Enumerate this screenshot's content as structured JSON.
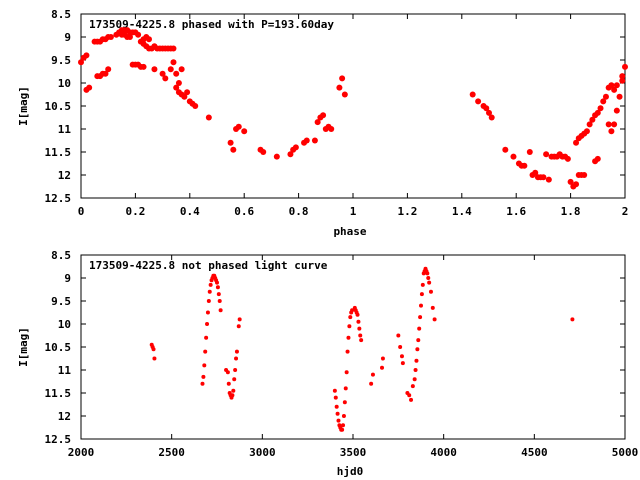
{
  "chart_data": [
    {
      "type": "scatter",
      "title": "173509-4225.8 phased with P=193.60day",
      "xlabel": "phase",
      "ylabel": "I[mag]",
      "xlim": [
        0,
        2
      ],
      "ylim": [
        12.5,
        8.5
      ],
      "y_inverted": true,
      "grid": false,
      "color": "#ff0000",
      "xticks": [
        "0",
        "0.2",
        "0.4",
        "0.6",
        "0.8",
        "1",
        "1.2",
        "1.4",
        "1.6",
        "1.8",
        "2"
      ],
      "yticks": [
        "8.5",
        "9",
        "9.5",
        "10",
        "10.5",
        "11",
        "11.5",
        "12",
        "12.5"
      ],
      "points": [
        [
          0.0,
          9.55
        ],
        [
          0.01,
          9.45
        ],
        [
          0.02,
          9.4
        ],
        [
          0.02,
          10.15
        ],
        [
          0.03,
          10.1
        ],
        [
          0.05,
          9.1
        ],
        [
          0.06,
          9.1
        ],
        [
          0.07,
          9.1
        ],
        [
          0.08,
          9.05
        ],
        [
          0.09,
          9.05
        ],
        [
          0.1,
          9.0
        ],
        [
          0.11,
          9.0
        ],
        [
          0.06,
          9.85
        ],
        [
          0.07,
          9.85
        ],
        [
          0.08,
          9.8
        ],
        [
          0.09,
          9.8
        ],
        [
          0.1,
          9.7
        ],
        [
          0.13,
          8.95
        ],
        [
          0.14,
          8.9
        ],
        [
          0.15,
          8.85
        ],
        [
          0.16,
          8.85
        ],
        [
          0.17,
          8.85
        ],
        [
          0.18,
          8.9
        ],
        [
          0.19,
          8.9
        ],
        [
          0.2,
          8.9
        ],
        [
          0.21,
          8.95
        ],
        [
          0.15,
          8.95
        ],
        [
          0.16,
          8.95
        ],
        [
          0.17,
          9.0
        ],
        [
          0.18,
          9.0
        ],
        [
          0.19,
          9.6
        ],
        [
          0.2,
          9.6
        ],
        [
          0.21,
          9.6
        ],
        [
          0.22,
          9.65
        ],
        [
          0.23,
          9.65
        ],
        [
          0.22,
          9.1
        ],
        [
          0.23,
          9.15
        ],
        [
          0.24,
          9.2
        ],
        [
          0.25,
          9.25
        ],
        [
          0.26,
          9.25
        ],
        [
          0.27,
          9.2
        ],
        [
          0.23,
          9.05
        ],
        [
          0.24,
          9.0
        ],
        [
          0.25,
          9.05
        ],
        [
          0.28,
          9.25
        ],
        [
          0.29,
          9.25
        ],
        [
          0.3,
          9.25
        ],
        [
          0.31,
          9.25
        ],
        [
          0.32,
          9.25
        ],
        [
          0.33,
          9.25
        ],
        [
          0.34,
          9.25
        ],
        [
          0.27,
          9.7
        ],
        [
          0.3,
          9.8
        ],
        [
          0.31,
          9.9
        ],
        [
          0.33,
          9.7
        ],
        [
          0.34,
          9.55
        ],
        [
          0.35,
          9.8
        ],
        [
          0.36,
          10.0
        ],
        [
          0.37,
          9.7
        ],
        [
          0.35,
          10.1
        ],
        [
          0.36,
          10.2
        ],
        [
          0.37,
          10.25
        ],
        [
          0.38,
          10.3
        ],
        [
          0.39,
          10.2
        ],
        [
          0.4,
          10.4
        ],
        [
          0.41,
          10.45
        ],
        [
          0.42,
          10.5
        ],
        [
          0.47,
          10.75
        ],
        [
          0.55,
          11.3
        ],
        [
          0.56,
          11.45
        ],
        [
          0.57,
          11.0
        ],
        [
          0.58,
          10.95
        ],
        [
          0.6,
          11.05
        ],
        [
          0.66,
          11.45
        ],
        [
          0.67,
          11.5
        ],
        [
          0.72,
          11.6
        ],
        [
          0.77,
          11.55
        ],
        [
          0.78,
          11.45
        ],
        [
          0.79,
          11.4
        ],
        [
          0.82,
          11.3
        ],
        [
          0.83,
          11.25
        ],
        [
          0.86,
          11.25
        ],
        [
          0.87,
          10.85
        ],
        [
          0.88,
          10.75
        ],
        [
          0.89,
          10.7
        ],
        [
          0.9,
          11.0
        ],
        [
          0.91,
          10.95
        ],
        [
          0.92,
          11.0
        ],
        [
          0.95,
          10.1
        ],
        [
          0.96,
          9.9
        ],
        [
          0.97,
          10.25
        ],
        [
          1.44,
          10.25
        ],
        [
          1.46,
          10.4
        ],
        [
          1.48,
          10.5
        ],
        [
          1.49,
          10.55
        ],
        [
          1.5,
          10.65
        ],
        [
          1.51,
          10.75
        ],
        [
          1.56,
          11.45
        ],
        [
          1.59,
          11.6
        ],
        [
          1.61,
          11.75
        ],
        [
          1.62,
          11.8
        ],
        [
          1.63,
          11.8
        ],
        [
          1.65,
          11.5
        ],
        [
          1.66,
          12.0
        ],
        [
          1.67,
          11.95
        ],
        [
          1.68,
          12.05
        ],
        [
          1.69,
          12.05
        ],
        [
          1.7,
          12.05
        ],
        [
          1.71,
          11.55
        ],
        [
          1.72,
          12.1
        ],
        [
          1.73,
          11.6
        ],
        [
          1.74,
          11.6
        ],
        [
          1.75,
          11.6
        ],
        [
          1.76,
          11.55
        ],
        [
          1.77,
          11.6
        ],
        [
          1.78,
          11.6
        ],
        [
          1.79,
          11.65
        ],
        [
          1.8,
          12.15
        ],
        [
          1.81,
          12.25
        ],
        [
          1.82,
          12.2
        ],
        [
          1.83,
          12.0
        ],
        [
          1.84,
          12.0
        ],
        [
          1.85,
          12.0
        ],
        [
          1.82,
          11.3
        ],
        [
          1.83,
          11.2
        ],
        [
          1.84,
          11.15
        ],
        [
          1.85,
          11.1
        ],
        [
          1.86,
          11.05
        ],
        [
          1.87,
          10.9
        ],
        [
          1.88,
          10.8
        ],
        [
          1.89,
          11.7
        ],
        [
          1.9,
          11.65
        ],
        [
          1.89,
          10.7
        ],
        [
          1.9,
          10.65
        ],
        [
          1.91,
          10.55
        ],
        [
          1.92,
          10.4
        ],
        [
          1.93,
          10.3
        ],
        [
          1.94,
          10.1
        ],
        [
          1.95,
          10.05
        ],
        [
          1.96,
          10.15
        ],
        [
          1.97,
          10.05
        ],
        [
          1.94,
          10.9
        ],
        [
          1.95,
          11.05
        ],
        [
          1.96,
          10.9
        ],
        [
          1.97,
          10.6
        ],
        [
          1.98,
          10.3
        ],
        [
          1.99,
          9.95
        ],
        [
          1.99,
          9.85
        ],
        [
          2.0,
          9.65
        ]
      ]
    },
    {
      "type": "scatter",
      "title": "173509-4225.8 not phased light curve",
      "xlabel": "hjd0",
      "ylabel": "I[mag]",
      "xlim": [
        2000,
        5000
      ],
      "ylim": [
        12.5,
        8.5
      ],
      "y_inverted": true,
      "grid": false,
      "color": "#ff0000",
      "xticks": [
        "2000",
        "2500",
        "3000",
        "3500",
        "4000",
        "4500",
        "5000"
      ],
      "yticks": [
        "8.5",
        "9",
        "9.5",
        "10",
        "10.5",
        "11",
        "11.5",
        "12",
        "12.5"
      ],
      "points": [
        [
          2390,
          10.45
        ],
        [
          2395,
          10.5
        ],
        [
          2400,
          10.55
        ],
        [
          2405,
          10.75
        ],
        [
          2670,
          11.3
        ],
        [
          2675,
          11.15
        ],
        [
          2680,
          10.9
        ],
        [
          2685,
          10.6
        ],
        [
          2690,
          10.3
        ],
        [
          2695,
          10.0
        ],
        [
          2700,
          9.75
        ],
        [
          2705,
          9.5
        ],
        [
          2710,
          9.3
        ],
        [
          2715,
          9.15
        ],
        [
          2720,
          9.05
        ],
        [
          2725,
          9.0
        ],
        [
          2730,
          8.95
        ],
        [
          2735,
          8.95
        ],
        [
          2740,
          9.0
        ],
        [
          2745,
          9.05
        ],
        [
          2750,
          9.1
        ],
        [
          2755,
          9.2
        ],
        [
          2760,
          9.35
        ],
        [
          2765,
          9.5
        ],
        [
          2770,
          9.7
        ],
        [
          2800,
          11.0
        ],
        [
          2810,
          11.05
        ],
        [
          2815,
          11.3
        ],
        [
          2820,
          11.5
        ],
        [
          2825,
          11.55
        ],
        [
          2830,
          11.6
        ],
        [
          2835,
          11.55
        ],
        [
          2840,
          11.45
        ],
        [
          2845,
          11.2
        ],
        [
          2850,
          11.0
        ],
        [
          2855,
          10.75
        ],
        [
          2860,
          10.6
        ],
        [
          2870,
          10.05
        ],
        [
          2875,
          9.9
        ],
        [
          3400,
          11.45
        ],
        [
          3405,
          11.6
        ],
        [
          3410,
          11.8
        ],
        [
          3415,
          11.95
        ],
        [
          3420,
          12.1
        ],
        [
          3425,
          12.2
        ],
        [
          3430,
          12.25
        ],
        [
          3435,
          12.3
        ],
        [
          3440,
          12.3
        ],
        [
          3445,
          12.2
        ],
        [
          3450,
          12.0
        ],
        [
          3455,
          11.7
        ],
        [
          3460,
          11.4
        ],
        [
          3465,
          11.05
        ],
        [
          3470,
          10.6
        ],
        [
          3475,
          10.3
        ],
        [
          3480,
          10.05
        ],
        [
          3485,
          9.85
        ],
        [
          3490,
          9.75
        ],
        [
          3495,
          9.7
        ],
        [
          3510,
          9.65
        ],
        [
          3515,
          9.7
        ],
        [
          3520,
          9.75
        ],
        [
          3525,
          9.8
        ],
        [
          3530,
          9.95
        ],
        [
          3535,
          10.1
        ],
        [
          3540,
          10.25
        ],
        [
          3545,
          10.35
        ],
        [
          3600,
          11.3
        ],
        [
          3610,
          11.1
        ],
        [
          3660,
          10.95
        ],
        [
          3665,
          10.75
        ],
        [
          3750,
          10.25
        ],
        [
          3760,
          10.5
        ],
        [
          3770,
          10.7
        ],
        [
          3775,
          10.85
        ],
        [
          3800,
          11.5
        ],
        [
          3810,
          11.55
        ],
        [
          3820,
          11.65
        ],
        [
          3830,
          11.35
        ],
        [
          3840,
          11.2
        ],
        [
          3845,
          11.0
        ],
        [
          3850,
          10.8
        ],
        [
          3855,
          10.55
        ],
        [
          3860,
          10.35
        ],
        [
          3865,
          10.1
        ],
        [
          3870,
          9.85
        ],
        [
          3875,
          9.6
        ],
        [
          3880,
          9.35
        ],
        [
          3885,
          9.15
        ],
        [
          3890,
          8.9
        ],
        [
          3895,
          8.85
        ],
        [
          3900,
          8.8
        ],
        [
          3905,
          8.85
        ],
        [
          3910,
          8.9
        ],
        [
          3915,
          9.0
        ],
        [
          3920,
          9.1
        ],
        [
          3930,
          9.3
        ],
        [
          3940,
          9.65
        ],
        [
          3950,
          9.9
        ],
        [
          4710,
          9.9
        ]
      ]
    }
  ]
}
